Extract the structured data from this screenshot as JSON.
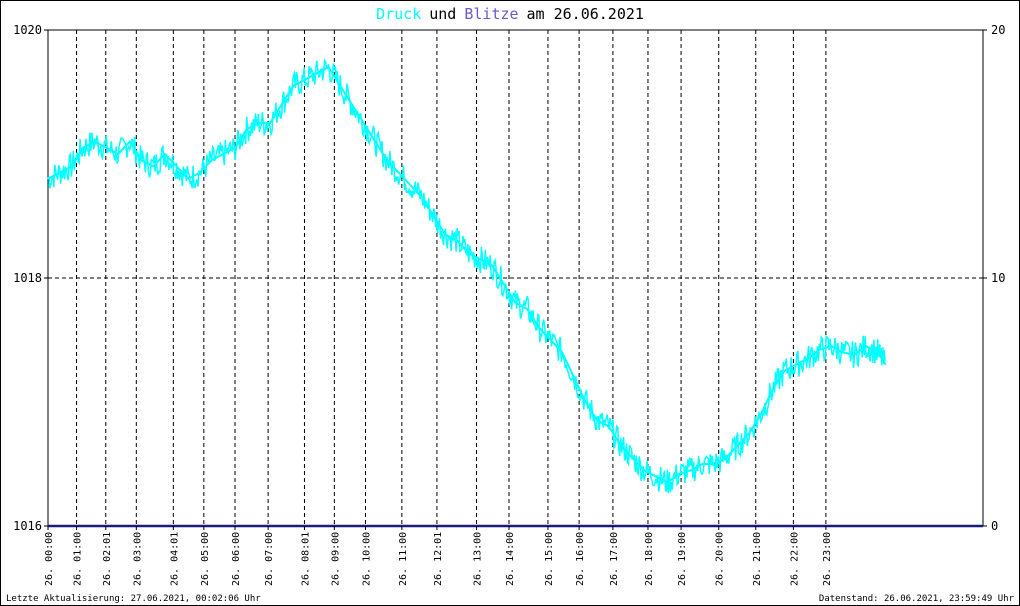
{
  "title": {
    "word1": "Druck",
    "word2": "und",
    "word3": "Blitze",
    "word4": "am 26.06.2021",
    "color1": "#00ffff",
    "color2": "#000000",
    "color3": "#6a5acd",
    "color4": "#000000"
  },
  "footer": {
    "left": "Letzte Aktualisierung: 27.06.2021, 00:02:06 Uhr",
    "right": "Datenstand: 26.06.2021, 23:59:49 Uhr"
  },
  "chart_data": {
    "type": "line",
    "title": "Druck und Blitze am 26.06.2021",
    "grid": true,
    "y_left": {
      "ticks": [
        "1020",
        "1018",
        "1016"
      ],
      "ylim": [
        1016,
        1020
      ]
    },
    "y_right": {
      "ticks": [
        "20",
        "10",
        "0"
      ],
      "ylim": [
        0,
        20
      ]
    },
    "x_ticks": [
      {
        "t": 0.0,
        "label": "26. 00:00"
      },
      {
        "t": 0.733,
        "label": "26. 01:00"
      },
      {
        "t": 1.483,
        "label": "26. 02:01"
      },
      {
        "t": 2.267,
        "label": "26. 03:00"
      },
      {
        "t": 3.217,
        "label": "26. 04:01"
      },
      {
        "t": 4.0,
        "label": "26. 05:00"
      },
      {
        "t": 4.8,
        "label": "26. 06:00"
      },
      {
        "t": 5.65,
        "label": "26. 07:00"
      },
      {
        "t": 6.583,
        "label": "26. 08:01"
      },
      {
        "t": 7.35,
        "label": "26. 09:00"
      },
      {
        "t": 8.15,
        "label": "26. 10:00"
      },
      {
        "t": 9.083,
        "label": "26. 11:00"
      },
      {
        "t": 9.983,
        "label": "26. 12:01"
      },
      {
        "t": 11.0,
        "label": "26. 13:00"
      },
      {
        "t": 11.833,
        "label": "26. 14:00"
      },
      {
        "t": 12.833,
        "label": "26. 15:00"
      },
      {
        "t": 13.633,
        "label": "26. 16:00"
      },
      {
        "t": 14.5,
        "label": "26. 17:00"
      },
      {
        "t": 15.4,
        "label": "26. 18:00"
      },
      {
        "t": 16.25,
        "label": "26. 19:00"
      },
      {
        "t": 17.217,
        "label": "26. 20:00"
      },
      {
        "t": 18.167,
        "label": "26. 21:00"
      },
      {
        "t": 19.133,
        "label": "26. 22:00"
      },
      {
        "t": 19.967,
        "label": "26. 23:00"
      }
    ],
    "series": [
      {
        "name": "Druck",
        "color": "#00ffff",
        "x_hours": [
          0.0,
          0.3,
          0.6,
          0.9,
          1.2,
          1.5,
          1.8,
          2.1,
          2.4,
          2.7,
          3.0,
          3.3,
          3.6,
          3.9,
          4.2,
          4.5,
          4.8,
          5.1,
          5.4,
          5.7,
          6.0,
          6.3,
          6.6,
          6.9,
          7.2,
          7.5,
          7.8,
          8.1,
          8.4,
          8.7,
          9.0,
          9.3,
          9.6,
          9.9,
          10.2,
          10.5,
          10.8,
          11.1,
          11.4,
          11.7,
          12.0,
          12.3,
          12.6,
          12.9,
          13.2,
          13.5,
          13.8,
          14.1,
          14.4,
          14.7,
          15.0,
          15.3,
          15.6,
          15.9,
          16.2,
          16.5,
          16.8,
          17.1,
          17.4,
          17.7,
          18.0,
          18.3,
          18.6,
          18.9,
          19.2,
          19.5,
          19.8,
          20.1,
          20.4,
          20.7,
          21.0,
          21.3,
          21.5
        ],
        "y": [
          1018.8,
          1018.85,
          1018.9,
          1019.05,
          1019.1,
          1019.05,
          1019.0,
          1019.1,
          1018.95,
          1018.9,
          1019.0,
          1018.9,
          1018.8,
          1018.85,
          1018.95,
          1019.0,
          1019.05,
          1019.2,
          1019.25,
          1019.25,
          1019.4,
          1019.55,
          1019.6,
          1019.65,
          1019.7,
          1019.55,
          1019.4,
          1019.25,
          1019.1,
          1018.95,
          1018.85,
          1018.75,
          1018.65,
          1018.5,
          1018.35,
          1018.3,
          1018.2,
          1018.15,
          1018.1,
          1017.95,
          1017.8,
          1017.75,
          1017.6,
          1017.5,
          1017.4,
          1017.2,
          1017.0,
          1016.85,
          1016.8,
          1016.65,
          1016.55,
          1016.45,
          1016.4,
          1016.35,
          1016.42,
          1016.45,
          1016.5,
          1016.5,
          1016.55,
          1016.65,
          1016.75,
          1016.9,
          1017.1,
          1017.25,
          1017.3,
          1017.35,
          1017.42,
          1017.45,
          1017.4,
          1017.38,
          1017.45,
          1017.4,
          1017.3
        ]
      },
      {
        "name": "Blitze",
        "color": "#1a1a80",
        "x_hours": [
          0.0,
          21.5
        ],
        "y": [
          0,
          0
        ]
      }
    ]
  }
}
